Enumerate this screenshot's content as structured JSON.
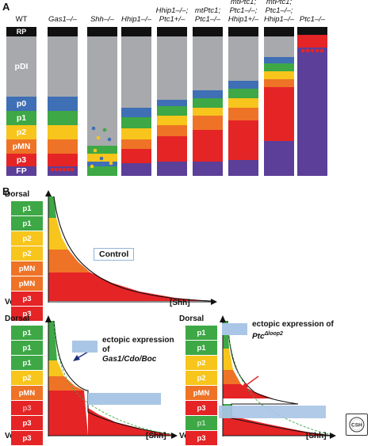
{
  "panelA": {
    "letter": "A",
    "columns": [
      {
        "label": "WT"
      },
      {
        "label": "Gas1–/–"
      },
      {
        "label": "Shh–/–"
      },
      {
        "label": "Hhip1–/–"
      },
      {
        "label": "Hhip1–/–;",
        "label2": "Ptc1+/–"
      },
      {
        "label": "mtPtc1;",
        "label2": "Ptc1–/–"
      },
      {
        "label": "mtPtc1;",
        "label2": "Ptc1–/–;",
        "label3": "Hhip1+/–"
      },
      {
        "label": "mtPtc1;",
        "label2": "Ptc1–/–;",
        "label3": "Hhip1–/–"
      },
      {
        "label": "Ptc1–/–"
      }
    ],
    "domains": [
      "RP",
      "pDI",
      "p0",
      "p1",
      "p2",
      "pMN",
      "p3",
      "FP"
    ]
  },
  "panelB": {
    "letter": "B",
    "control": {
      "dorsal": "Dorsal",
      "ventral": "Ventral",
      "xaxis": "[Shh]",
      "bands": [
        "p1",
        "p1",
        "p2",
        "p2",
        "pMN",
        "pMN",
        "p3",
        "p3"
      ],
      "box_label": "Control"
    },
    "gas1": {
      "dorsal": "Dorsal",
      "ventral": "Ventral",
      "xaxis": "[Shh]",
      "bands": [
        "p1",
        "p1",
        "p1",
        "p2",
        "pMN",
        "p3",
        "p3",
        "p3"
      ],
      "legend_line1": "ectopic expression of",
      "legend_line2": "Gas1/Cdo/Boc"
    },
    "ptc": {
      "dorsal": "Dorsal",
      "ventral": "Ventral",
      "xaxis": "[Shh]",
      "bands": [
        "p1",
        "p1",
        "p2",
        "p2",
        "pMN",
        "p3",
        "p1",
        "p3"
      ],
      "legend_line1": "ectopic expression of",
      "legend_line2": "Ptc",
      "legend_sup": "Δloop2"
    }
  },
  "colors": {
    "RP": "#111111",
    "pDI": "#a7a9ac",
    "p0": "#3f6fb5",
    "p1": "#3da845",
    "p2": "#f7c51c",
    "pMN": "#ee7326",
    "p3": "#e52426",
    "FP": "#5b3f98",
    "ectopic": "#a9c6e6"
  },
  "logo": "CSH Perspectives"
}
